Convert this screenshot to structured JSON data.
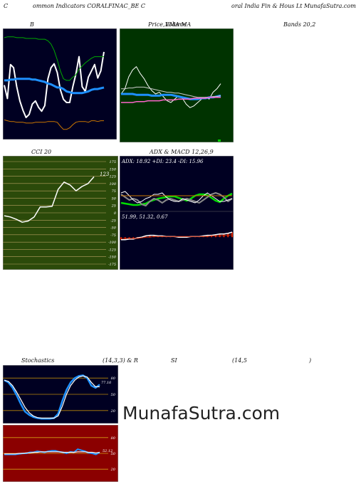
{
  "header": {
    "c1": "C",
    "c2": "ommon  Indicators CORALFINAC_BE C",
    "c3": "oral India  Fin  &  Hous Lt MunafaSutra.com"
  },
  "labels": {
    "bb": "B",
    "price": "Price,",
    "volume": "Volume",
    "ema": "EMA   MA",
    "bands": "Bands 20,2",
    "cci": "CCI 20",
    "adx_macd": "ADX  &  MACD 12,26,9",
    "stoch": "Stochastics",
    "stoch_params": "(14,3,3) & R",
    "si": "SI",
    "rsi_params": "(14,5",
    "rsi_close": ")"
  },
  "adx_text": "ADX: 18.92  +DI: 23.4  -DI: 15.96",
  "macd_text": "51.99,  51.32,  0.67",
  "cci_value": "123",
  "stoch_value": "77.16",
  "rsi_value": "52.12",
  "watermark": "MunafaSutra.com",
  "colors": {
    "bb_bg": "#000022",
    "ema_bg": "#003300",
    "cci_bg": "#2b4a0a",
    "adx_bg": "#000022",
    "stoch_bg": "#000022",
    "rsi_bg": "#8b0000"
  },
  "chart_data": [
    {
      "type": "line",
      "panel": "bollinger",
      "series": [
        {
          "color": "#ffffff",
          "values": [
            52,
            35,
            78,
            74,
            50,
            32,
            20,
            11,
            15,
            28,
            32,
            24,
            19,
            26,
            60,
            74,
            79,
            68,
            46,
            34,
            30,
            30,
            50,
            66,
            88,
            50,
            44,
            62,
            70,
            78,
            61,
            70,
            94
          ]
        },
        {
          "color": "#1e90ff",
          "values": [
            58,
            58,
            59,
            59,
            60,
            60,
            60,
            60,
            60,
            59,
            59,
            58,
            57,
            56,
            54,
            53,
            51,
            49,
            49,
            47,
            44,
            43,
            42,
            42,
            42,
            42,
            43,
            44,
            46,
            47,
            47,
            48,
            49
          ]
        },
        {
          "color": "#00aa00",
          "values": [
            112,
            113,
            113,
            113,
            112,
            112,
            112,
            111,
            111,
            111,
            111,
            110,
            110,
            110,
            108,
            104,
            96,
            84,
            70,
            60,
            58,
            58,
            62,
            65,
            72,
            76,
            80,
            83,
            86,
            88,
            88,
            88,
            88
          ]
        },
        {
          "color": "#cc7700",
          "values": [
            8,
            7,
            6,
            6,
            5,
            5,
            5,
            4,
            4,
            4,
            5,
            5,
            5,
            5,
            6,
            6,
            6,
            5,
            0,
            -4,
            -4,
            -2,
            2,
            5,
            6,
            6,
            6,
            5,
            7,
            7,
            6,
            7,
            7
          ]
        }
      ],
      "ylim": [
        -15,
        120
      ]
    },
    {
      "type": "line",
      "panel": "ema",
      "series": [
        {
          "color": "#ffffff",
          "values": [
            40,
            46,
            60,
            68,
            72,
            64,
            58,
            50,
            44,
            40,
            42,
            37,
            32,
            30,
            34,
            38,
            35,
            28,
            24,
            26,
            30,
            34,
            36,
            34,
            42,
            46,
            52
          ]
        },
        {
          "color": "#1e90ff",
          "values": [
            40,
            40,
            40,
            40,
            39,
            39,
            39,
            39,
            38,
            38,
            38,
            39,
            39,
            39,
            38,
            37,
            36,
            35,
            34,
            34,
            34,
            35,
            35,
            36,
            36,
            37,
            38
          ]
        },
        {
          "color": "#cccccc",
          "values": [
            46,
            46,
            47,
            47,
            48,
            48,
            48,
            47,
            46,
            45,
            44,
            43,
            42,
            42,
            41,
            41,
            40,
            39,
            38,
            37,
            36,
            36,
            36,
            36,
            37,
            37,
            38
          ]
        },
        {
          "color": "#ff66cc",
          "values": [
            30,
            30,
            30,
            30,
            31,
            31,
            31,
            32,
            32,
            32,
            32,
            33,
            33,
            33,
            33,
            34,
            34,
            34,
            34,
            35,
            35,
            35,
            35,
            36,
            36,
            36,
            36
          ]
        }
      ],
      "ylim": [
        0,
        100
      ]
    },
    {
      "type": "line",
      "panel": "cci",
      "y_ticks": [
        175,
        150,
        125,
        100,
        75,
        50,
        25,
        0,
        -25,
        -50,
        -75,
        -100,
        -125,
        -150,
        -175
      ],
      "series": [
        {
          "color": "#ffffff",
          "values": [
            -10,
            -14,
            -22,
            -32,
            -28,
            -14,
            20,
            20,
            22,
            80,
            105,
            95,
            75,
            90,
            100,
            123
          ]
        }
      ],
      "ylim": [
        -175,
        175
      ]
    },
    {
      "type": "line",
      "panel": "adx",
      "series": [
        {
          "color": "#00dd00",
          "values": [
            10,
            9,
            8,
            7,
            7,
            8,
            9,
            12,
            14,
            16,
            17,
            18,
            19,
            19,
            17,
            15,
            13,
            16,
            20,
            22,
            22,
            21,
            17,
            13,
            11,
            16,
            20,
            23
          ]
        },
        {
          "color": "#888888",
          "values": [
            22,
            18,
            14,
            16,
            14,
            8,
            6,
            12,
            16,
            14,
            10,
            14,
            16,
            14,
            12,
            14,
            16,
            14,
            12,
            10,
            14,
            18,
            22,
            24,
            22,
            18,
            12,
            16
          ]
        },
        {
          "color": "#ffffff",
          "values": [
            24,
            26,
            20,
            14,
            10,
            12,
            16,
            18,
            22,
            22,
            24,
            18,
            14,
            12,
            12,
            16,
            14,
            12,
            10,
            14,
            20,
            24,
            20,
            16,
            12,
            12,
            14,
            16
          ]
        },
        {
          "color": "#cc7700",
          "values": [
            20,
            20,
            20,
            20,
            20,
            20,
            20,
            20,
            20,
            20,
            20,
            20,
            20,
            20,
            20,
            20,
            20,
            20,
            20,
            20,
            20,
            20,
            20,
            20,
            20,
            20,
            20,
            20
          ]
        }
      ],
      "ylim": [
        0,
        40
      ]
    },
    {
      "type": "line",
      "panel": "macd",
      "series": [
        {
          "color": "#ffffff",
          "values": [
            46,
            46,
            47,
            47,
            49,
            50,
            52,
            53,
            53,
            52,
            52,
            51,
            51,
            51,
            50,
            50,
            50,
            51,
            51,
            51,
            52,
            53,
            53,
            54,
            55,
            55,
            56,
            58
          ]
        },
        {
          "color": "#cc2200",
          "values": [
            48,
            48,
            48,
            48,
            48,
            49,
            50,
            50,
            51,
            51,
            51,
            51,
            51,
            51,
            51,
            51,
            51,
            51,
            51,
            51,
            51,
            51,
            52,
            52,
            52,
            53,
            53,
            54
          ]
        }
      ],
      "ylim": [
        30,
        75
      ]
    },
    {
      "type": "line",
      "panel": "stochastics",
      "y_ticks": [
        80,
        50,
        20
      ],
      "series": [
        {
          "color": "#1e90ff",
          "values": [
            76,
            72,
            62,
            48,
            32,
            18,
            12,
            8,
            6,
            5,
            5,
            5,
            6,
            14,
            38,
            58,
            72,
            80,
            84,
            85,
            80,
            66,
            62,
            68
          ]
        },
        {
          "color": "#ffffff",
          "values": [
            76,
            74,
            66,
            54,
            40,
            26,
            16,
            10,
            7,
            6,
            6,
            6,
            6,
            10,
            28,
            50,
            66,
            76,
            82,
            84,
            82,
            72,
            64,
            64
          ]
        }
      ],
      "ylim": [
        0,
        100
      ]
    },
    {
      "type": "line",
      "panel": "rsi",
      "y_ticks": [
        80,
        50,
        20
      ],
      "series": [
        {
          "color": "#1e90ff",
          "values": [
            48,
            48,
            48,
            48,
            49,
            50,
            50,
            52,
            52,
            54,
            53,
            52,
            54,
            55,
            55,
            53,
            52,
            50,
            53,
            52,
            58,
            56,
            54,
            51,
            50,
            48,
            52
          ]
        },
        {
          "color": "#ffffff",
          "values": [
            49,
            49,
            49,
            49,
            50,
            50,
            51,
            51,
            52,
            52,
            53,
            53,
            53,
            53,
            53,
            53,
            52,
            52,
            52,
            52,
            53,
            53,
            53,
            52,
            52,
            51,
            52
          ]
        }
      ],
      "ylim": [
        0,
        100
      ]
    }
  ]
}
